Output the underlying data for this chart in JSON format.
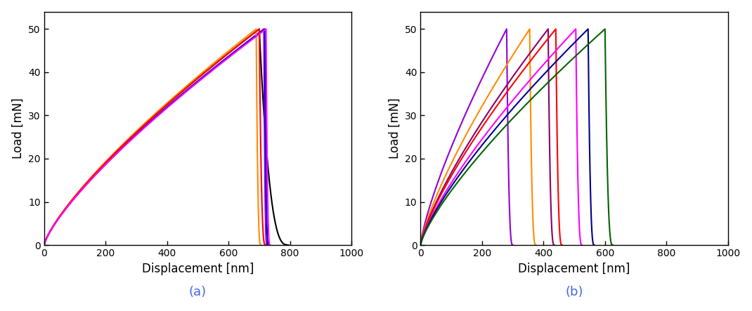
{
  "panel_a": {
    "curves": [
      {
        "color": "#000000",
        "load_peak_disp": 700,
        "unload_end_disp": 795,
        "load_exp": 1.3,
        "unload_exp": 0.35
      },
      {
        "color": "#9400D3",
        "load_peak_disp": 715,
        "unload_end_disp": 725,
        "load_exp": 1.3,
        "unload_exp": 0.35
      },
      {
        "color": "#0000CD",
        "load_peak_disp": 718,
        "unload_end_disp": 730,
        "load_exp": 1.3,
        "unload_exp": 0.35
      },
      {
        "color": "#FF8C00",
        "load_peak_disp": 690,
        "unload_end_disp": 705,
        "load_exp": 1.3,
        "unload_exp": 0.35
      },
      {
        "color": "#FF0000",
        "load_peak_disp": 700,
        "unload_end_disp": 720,
        "load_exp": 1.3,
        "unload_exp": 0.35
      },
      {
        "color": "#FF00FF",
        "load_peak_disp": 722,
        "unload_end_disp": 735,
        "load_exp": 1.3,
        "unload_exp": 0.35
      }
    ],
    "xlabel": "Displacement [nm]",
    "ylabel": "Load [mN]",
    "xlim": [
      0,
      1000
    ],
    "ylim": [
      0,
      54
    ],
    "xticks": [
      0,
      200,
      400,
      600,
      800,
      1000
    ],
    "yticks": [
      0,
      10,
      20,
      30,
      40,
      50
    ],
    "label": "(a)"
  },
  "panel_b": {
    "curves": [
      {
        "color": "#9400D3",
        "load_peak_disp": 280,
        "unload_end_disp": 300,
        "load_exp": 1.3,
        "unload_exp": 0.35
      },
      {
        "color": "#FF8C00",
        "load_peak_disp": 355,
        "unload_end_disp": 375,
        "load_exp": 1.3,
        "unload_exp": 0.35
      },
      {
        "color": "#8B0066",
        "load_peak_disp": 415,
        "unload_end_disp": 435,
        "load_exp": 1.3,
        "unload_exp": 0.35
      },
      {
        "color": "#FF0000",
        "load_peak_disp": 440,
        "unload_end_disp": 460,
        "load_exp": 1.3,
        "unload_exp": 0.35
      },
      {
        "color": "#FF00FF",
        "load_peak_disp": 505,
        "unload_end_disp": 525,
        "load_exp": 1.3,
        "unload_exp": 0.35
      },
      {
        "color": "#00008B",
        "load_peak_disp": 545,
        "unload_end_disp": 565,
        "load_exp": 1.3,
        "unload_exp": 0.35
      },
      {
        "color": "#006400",
        "load_peak_disp": 600,
        "unload_end_disp": 625,
        "load_exp": 1.3,
        "unload_exp": 0.35
      }
    ],
    "xlabel": "Displacement [nm]",
    "ylabel": "Load [mN]",
    "xlim": [
      0,
      1000
    ],
    "ylim": [
      0,
      54
    ],
    "xticks": [
      0,
      200,
      400,
      600,
      800,
      1000
    ],
    "yticks": [
      0,
      10,
      20,
      30,
      40,
      50
    ],
    "label": "(b)"
  },
  "max_load": 50,
  "figsize": [
    10.7,
    4.43
  ],
  "dpi": 100
}
